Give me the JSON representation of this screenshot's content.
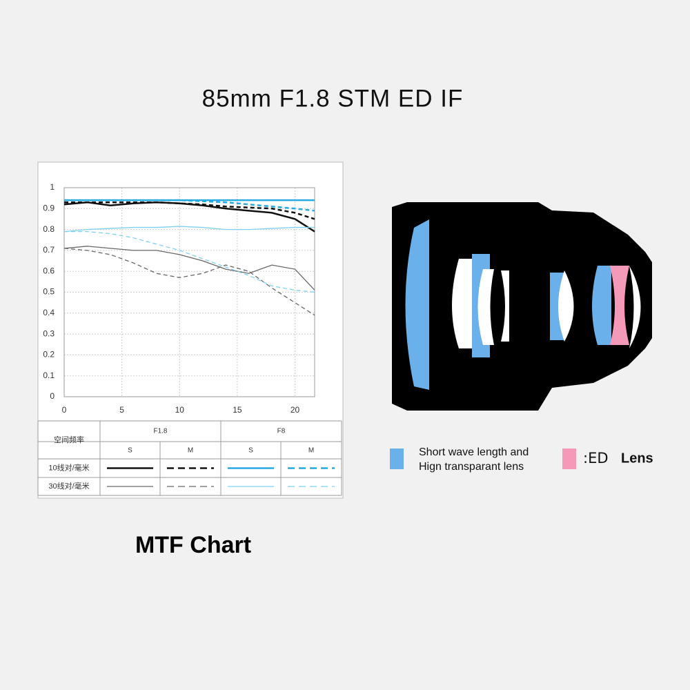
{
  "title": "85mm F1.8 STM ED IF",
  "caption": "MTF Chart",
  "chart_data": {
    "type": "line",
    "x": [
      0,
      2,
      4,
      6,
      8,
      10,
      12,
      14,
      16,
      18,
      20,
      21.7
    ],
    "xlim": [
      0,
      21.7
    ],
    "xticks": [
      0,
      5,
      10,
      15,
      20
    ],
    "ylim": [
      0,
      1
    ],
    "yticks": [
      0,
      0.1,
      0.2,
      0.3,
      0.4,
      0.5,
      0.6,
      0.7,
      0.8,
      0.9,
      1
    ],
    "grid": true,
    "series": [
      {
        "color": "#111111",
        "dashed": false,
        "width": 2.5,
        "values": [
          0.92,
          0.93,
          0.915,
          0.925,
          0.93,
          0.925,
          0.915,
          0.9,
          0.89,
          0.88,
          0.85,
          0.79
        ]
      },
      {
        "color": "#111111",
        "dashed": true,
        "width": 2.5,
        "values": [
          0.93,
          0.93,
          0.93,
          0.93,
          0.93,
          0.925,
          0.92,
          0.91,
          0.905,
          0.9,
          0.88,
          0.85
        ]
      },
      {
        "color": "#27a9e1",
        "dashed": false,
        "width": 2.5,
        "values": [
          0.94,
          0.94,
          0.94,
          0.94,
          0.94,
          0.94,
          0.94,
          0.94,
          0.94,
          0.94,
          0.94,
          0.94
        ]
      },
      {
        "color": "#27a9e1",
        "dashed": true,
        "width": 2.5,
        "values": [
          0.94,
          0.94,
          0.94,
          0.94,
          0.94,
          0.94,
          0.935,
          0.93,
          0.92,
          0.91,
          0.9,
          0.89
        ]
      },
      {
        "color": "#666666",
        "dashed": false,
        "width": 1.3,
        "values": [
          0.71,
          0.72,
          0.71,
          0.7,
          0.7,
          0.68,
          0.65,
          0.61,
          0.59,
          0.63,
          0.61,
          0.51
        ]
      },
      {
        "color": "#666666",
        "dashed": true,
        "width": 1.3,
        "values": [
          0.71,
          0.7,
          0.68,
          0.64,
          0.59,
          0.57,
          0.59,
          0.63,
          0.6,
          0.52,
          0.45,
          0.39
        ]
      },
      {
        "color": "#7fd0f0",
        "dashed": false,
        "width": 1.3,
        "values": [
          0.79,
          0.8,
          0.805,
          0.81,
          0.81,
          0.815,
          0.81,
          0.8,
          0.8,
          0.805,
          0.81,
          0.81
        ]
      },
      {
        "color": "#7fd0f0",
        "dashed": true,
        "width": 1.3,
        "values": [
          0.79,
          0.79,
          0.78,
          0.76,
          0.73,
          0.7,
          0.66,
          0.62,
          0.58,
          0.53,
          0.51,
          0.5
        ]
      }
    ]
  },
  "mtf_table": {
    "header": "空间频率",
    "apertures": [
      "F1.8",
      "F8"
    ],
    "columns": [
      "S",
      "M",
      "S",
      "M"
    ],
    "rows": [
      "10线对/毫米",
      "30线对/毫米"
    ]
  },
  "lens_legend": {
    "short_wave": [
      "Short wave length and",
      "Hign transparant lens"
    ],
    "ed": ":ED",
    "ed_label": "Lens"
  }
}
